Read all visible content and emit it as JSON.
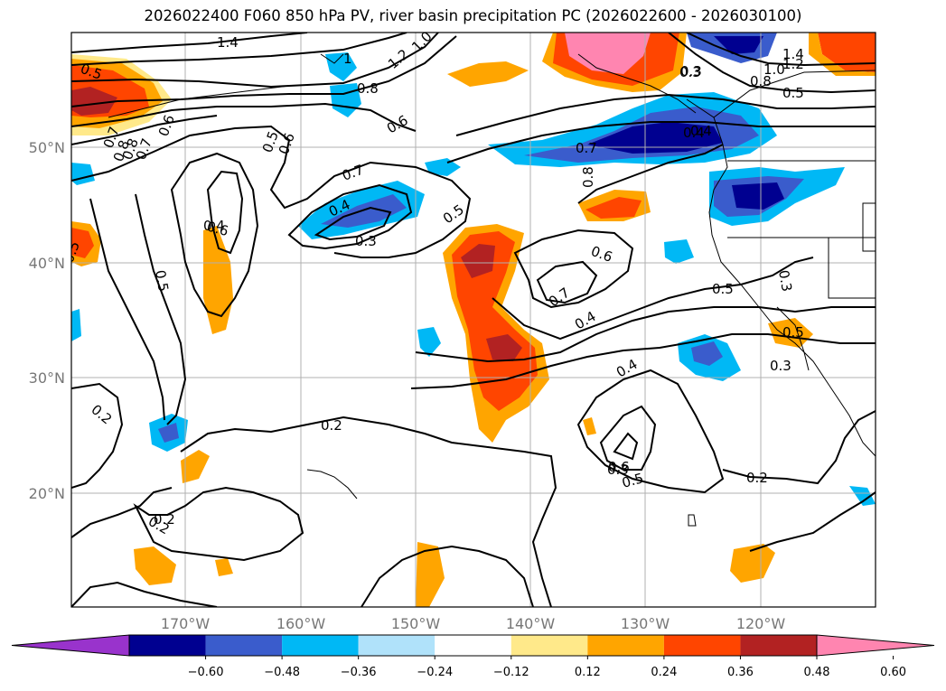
{
  "title": "2026022400 F060 850 hPa PV, river basin precipitation PC (2026022600 - 2026030100)",
  "axes": {
    "lat_labels": [
      "50°N",
      "40°N",
      "30°N",
      "20°N"
    ],
    "lon_labels": [
      "170°W",
      "160°W",
      "150°W",
      "140°W",
      "130°W",
      "120°W"
    ],
    "grid": true
  },
  "colorbar": {
    "extend": "both",
    "ticks": [
      "−0.60",
      "−0.48",
      "−0.36",
      "−0.24",
      "−0.12",
      "0.12",
      "0.24",
      "0.36",
      "0.48",
      "0.60"
    ],
    "colors": [
      "#9933cc",
      "#000090",
      "#3a5ccc",
      "#00b8f5",
      "#b0e2fa",
      "#ffffff",
      "#ffe98a",
      "#ffa500",
      "#ff4500",
      "#b22222",
      "#ff85b0"
    ]
  },
  "contour_labels": [
    "1.4",
    "1.2",
    "1.0",
    "1",
    "0.8",
    "0.6",
    "0.7",
    "0.5",
    "0.4",
    "0.3",
    "0.2",
    "0.3",
    "0.2",
    "1.4",
    "1.2",
    "1.0",
    "0.8",
    "0.5",
    "0.3",
    "0.7",
    "0.8",
    "0.4",
    "0.6",
    "0.7",
    "0.4",
    "0.6",
    "0.5",
    "0.3",
    "0.5",
    "0.4",
    "0.6",
    "0.5",
    "0.2",
    "0.3",
    "0.5",
    "0.8",
    "0.7",
    "0.6",
    "0.5",
    "0.5",
    "0.4",
    "0.5",
    "0.2",
    "0.2",
    "0.6",
    "0.7",
    "0.8",
    "0.3",
    "0.4"
  ]
}
